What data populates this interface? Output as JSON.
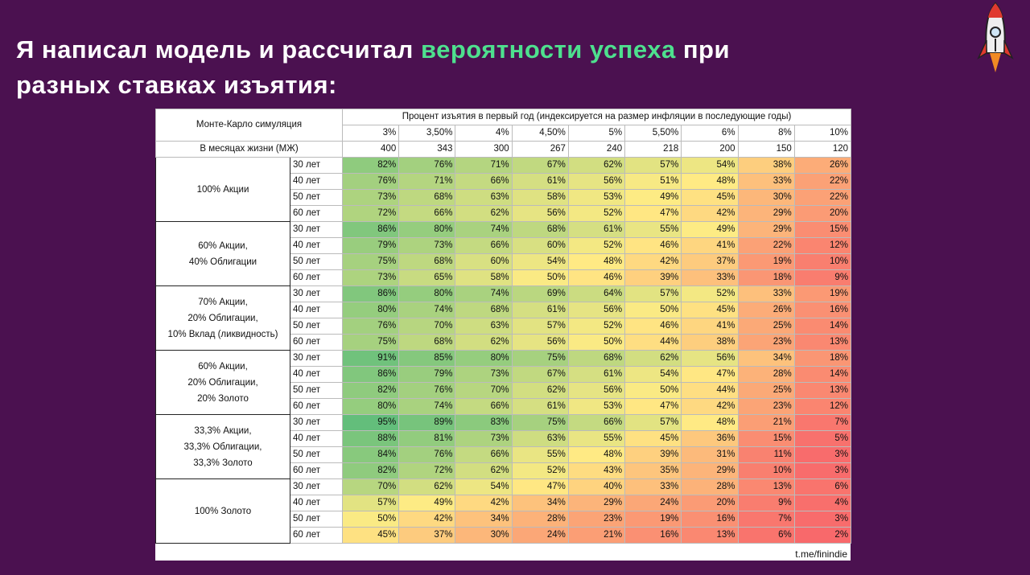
{
  "title": {
    "line1_start": "Я написал модель и рассчитал",
    "highlight": "вероятности успеха",
    "line1_end": "при",
    "line2": "разных ставках изъятия:"
  },
  "table": {
    "corner": "Монте-Карло симуляция",
    "header": "Процент изъятия в первый год (индексируется на размер инфляции в последующие годы)",
    "rates": [
      "3%",
      "3,50%",
      "4%",
      "4,50%",
      "5%",
      "5,50%",
      "6%",
      "8%",
      "10%"
    ],
    "months_label": "В месяцах жизни (МЖ)",
    "months": [
      "400",
      "343",
      "300",
      "267",
      "240",
      "218",
      "200",
      "150",
      "120"
    ],
    "groups": [
      {
        "label_lines": [
          "100% Акции"
        ],
        "rows": [
          {
            "period": "30 лет",
            "values": [
              "82%",
              "76%",
              "71%",
              "67%",
              "62%",
              "57%",
              "54%",
              "38%",
              "26%"
            ]
          },
          {
            "period": "40 лет",
            "values": [
              "76%",
              "71%",
              "66%",
              "61%",
              "56%",
              "51%",
              "48%",
              "33%",
              "22%"
            ]
          },
          {
            "period": "50 лет",
            "values": [
              "73%",
              "68%",
              "63%",
              "58%",
              "53%",
              "49%",
              "45%",
              "30%",
              "22%"
            ]
          },
          {
            "period": "60 лет",
            "values": [
              "72%",
              "66%",
              "62%",
              "56%",
              "52%",
              "47%",
              "42%",
              "29%",
              "20%"
            ]
          }
        ]
      },
      {
        "label_lines": [
          "60% Акции,",
          "40% Облигации"
        ],
        "rows": [
          {
            "period": "30 лет",
            "values": [
              "86%",
              "80%",
              "74%",
              "68%",
              "61%",
              "55%",
              "49%",
              "29%",
              "15%"
            ]
          },
          {
            "period": "40 лет",
            "values": [
              "79%",
              "73%",
              "66%",
              "60%",
              "52%",
              "46%",
              "41%",
              "22%",
              "12%"
            ]
          },
          {
            "period": "50 лет",
            "values": [
              "75%",
              "68%",
              "60%",
              "54%",
              "48%",
              "42%",
              "37%",
              "19%",
              "10%"
            ]
          },
          {
            "period": "60 лет",
            "values": [
              "73%",
              "65%",
              "58%",
              "50%",
              "46%",
              "39%",
              "33%",
              "18%",
              "9%"
            ]
          }
        ]
      },
      {
        "label_lines": [
          "70% Акции,",
          "20% Облигации,",
          "10% Вклад (ликвидность)"
        ],
        "rows": [
          {
            "period": "30 лет",
            "values": [
              "86%",
              "80%",
              "74%",
              "69%",
              "64%",
              "57%",
              "52%",
              "33%",
              "19%"
            ]
          },
          {
            "period": "40 лет",
            "values": [
              "80%",
              "74%",
              "68%",
              "61%",
              "56%",
              "50%",
              "45%",
              "26%",
              "16%"
            ]
          },
          {
            "period": "50 лет",
            "values": [
              "76%",
              "70%",
              "63%",
              "57%",
              "52%",
              "46%",
              "41%",
              "25%",
              "14%"
            ]
          },
          {
            "period": "60 лет",
            "values": [
              "75%",
              "68%",
              "62%",
              "56%",
              "50%",
              "44%",
              "38%",
              "23%",
              "13%"
            ]
          }
        ]
      },
      {
        "label_lines": [
          "60% Акции,",
          "20% Облигации,",
          "20% Золото"
        ],
        "rows": [
          {
            "period": "30 лет",
            "values": [
              "91%",
              "85%",
              "80%",
              "75%",
              "68%",
              "62%",
              "56%",
              "34%",
              "18%"
            ]
          },
          {
            "period": "40 лет",
            "values": [
              "86%",
              "79%",
              "73%",
              "67%",
              "61%",
              "54%",
              "47%",
              "28%",
              "14%"
            ]
          },
          {
            "period": "50 лет",
            "values": [
              "82%",
              "76%",
              "70%",
              "62%",
              "56%",
              "50%",
              "44%",
              "25%",
              "13%"
            ]
          },
          {
            "period": "60 лет",
            "values": [
              "80%",
              "74%",
              "66%",
              "61%",
              "53%",
              "47%",
              "42%",
              "23%",
              "12%"
            ]
          }
        ]
      },
      {
        "label_lines": [
          "33,3% Акции,",
          "33,3% Облигации,",
          "33,3% Золото"
        ],
        "rows": [
          {
            "period": "30 лет",
            "values": [
              "95%",
              "89%",
              "83%",
              "75%",
              "66%",
              "57%",
              "48%",
              "21%",
              "7%"
            ]
          },
          {
            "period": "40 лет",
            "values": [
              "88%",
              "81%",
              "73%",
              "63%",
              "55%",
              "45%",
              "36%",
              "15%",
              "5%"
            ]
          },
          {
            "period": "50 лет",
            "values": [
              "84%",
              "76%",
              "66%",
              "55%",
              "48%",
              "39%",
              "31%",
              "11%",
              "3%"
            ]
          },
          {
            "period": "60 лет",
            "values": [
              "82%",
              "72%",
              "62%",
              "52%",
              "43%",
              "35%",
              "29%",
              "10%",
              "3%"
            ]
          }
        ]
      },
      {
        "label_lines": [
          "100% Золото"
        ],
        "rows": [
          {
            "period": "30 лет",
            "values": [
              "70%",
              "62%",
              "54%",
              "47%",
              "40%",
              "33%",
              "28%",
              "13%",
              "6%"
            ]
          },
          {
            "period": "40 лет",
            "values": [
              "57%",
              "49%",
              "42%",
              "34%",
              "29%",
              "24%",
              "20%",
              "9%",
              "4%"
            ]
          },
          {
            "period": "50 лет",
            "values": [
              "50%",
              "42%",
              "34%",
              "28%",
              "23%",
              "19%",
              "16%",
              "7%",
              "3%"
            ]
          },
          {
            "period": "60 лет",
            "values": [
              "45%",
              "37%",
              "30%",
              "24%",
              "21%",
              "16%",
              "13%",
              "6%",
              "2%"
            ]
          }
        ]
      }
    ],
    "source": "t.me/finindie"
  }
}
